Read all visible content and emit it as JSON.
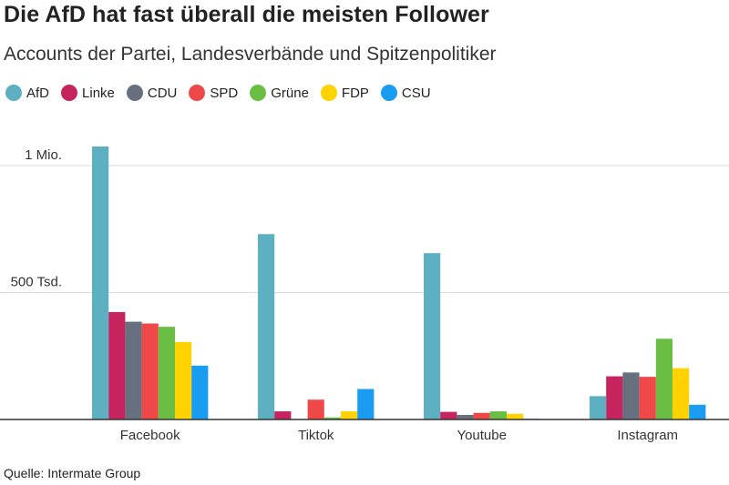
{
  "title": "Die AfD hat fast überall die meisten Follower",
  "subtitle": "Accounts der Partei, Landesverbände und Spitzenpolitiker",
  "source": "Quelle: Intermate Group",
  "chart_data": {
    "type": "bar",
    "title": "Die AfD hat fast überall die meisten Follower",
    "subtitle": "Accounts der Partei, Landesverbände und Spitzenpolitiker",
    "xlabel": "",
    "ylabel": "",
    "categories": [
      "Facebook",
      "Tiktok",
      "Youtube",
      "Instagram"
    ],
    "ylim": [
      0,
      1100000
    ],
    "yticks": [
      {
        "value": 500000,
        "label": "500 Tsd."
      },
      {
        "value": 1000000,
        "label": "1 Mio."
      }
    ],
    "grid": true,
    "legend_position": "top-left",
    "series": [
      {
        "name": "AfD",
        "color": "#5DB0C1",
        "values": [
          1075000,
          730000,
          655000,
          92000
        ]
      },
      {
        "name": "Linke",
        "color": "#C5245F",
        "values": [
          423000,
          32000,
          30000,
          170000
        ]
      },
      {
        "name": "CDU",
        "color": "#67707F",
        "values": [
          385000,
          0,
          18000,
          185000
        ]
      },
      {
        "name": "SPD",
        "color": "#EF4848",
        "values": [
          378000,
          78000,
          26000,
          168000
        ]
      },
      {
        "name": "Grüne",
        "color": "#6BBE44",
        "values": [
          365000,
          8000,
          32000,
          318000
        ]
      },
      {
        "name": "FDP",
        "color": "#FFD200",
        "values": [
          305000,
          32000,
          22000,
          202000
        ]
      },
      {
        "name": "CSU",
        "color": "#1A9DF0",
        "values": [
          212000,
          120000,
          3000,
          58000
        ]
      }
    ]
  }
}
